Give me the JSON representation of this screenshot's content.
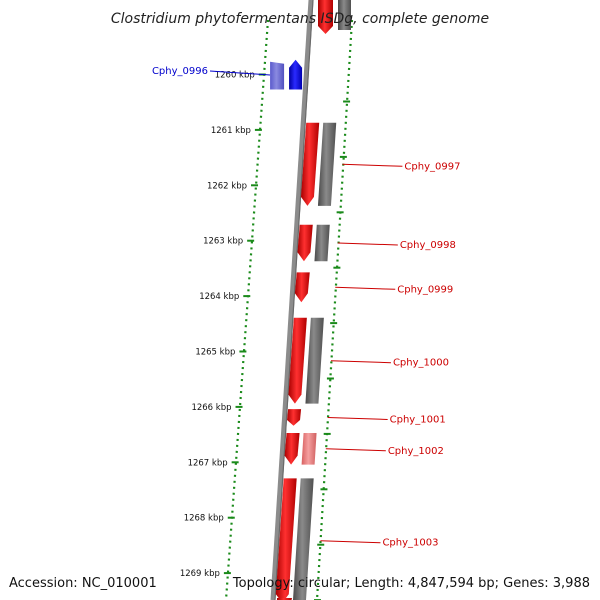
{
  "title": "Clostridium phytofermentans ISDg, complete genome",
  "footer": {
    "accession": "Accession: NC_010001",
    "summary": "Topology: circular; Length: 4,847,594 bp; Genes: 3,988"
  },
  "colors": {
    "forward_strand": "#ff0000",
    "reverse_strand": "#0000ff",
    "cds": "#707070",
    "backbone": "#8c8c8c",
    "tick_marks": "#1a8a1a",
    "label_forward": "#cc0000",
    "label_reverse": "#0000cc"
  },
  "ticks": [
    "1260 kbp",
    "1261 kbp",
    "1262 kbp",
    "1263 kbp",
    "1264 kbp",
    "1265 kbp",
    "1266 kbp",
    "1267 kbp",
    "1268 kbp",
    "1269 kbp"
  ],
  "genes": [
    {
      "label": "Cphy_0996",
      "strand": "reverse",
      "start_kbp": 1259.78,
      "end_kbp": 1260.28
    },
    {
      "label": "Cphy_0997",
      "strand": "forward",
      "start_kbp": 1260.88,
      "end_kbp": 1262.38
    },
    {
      "label": "Cphy_0998",
      "strand": "forward",
      "start_kbp": 1262.72,
      "end_kbp": 1263.38
    },
    {
      "label": "Cphy_0999",
      "strand": "forward",
      "start_kbp": 1263.58,
      "end_kbp": 1264.12
    },
    {
      "label": "Cphy_1000",
      "strand": "forward",
      "start_kbp": 1264.4,
      "end_kbp": 1265.95
    },
    {
      "label": "Cphy_1001",
      "strand": "forward",
      "start_kbp": 1266.05,
      "end_kbp": 1266.35
    },
    {
      "label": "Cphy_1002",
      "strand": "forward",
      "start_kbp": 1266.48,
      "end_kbp": 1267.05
    },
    {
      "label": "Cphy_1003",
      "strand": "forward",
      "start_kbp": 1267.3,
      "end_kbp": 1269.55
    }
  ]
}
